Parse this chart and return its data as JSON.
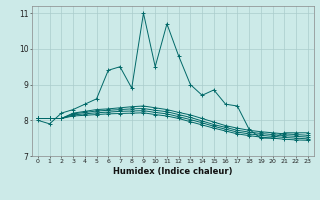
{
  "xlabel": "Humidex (Indice chaleur)",
  "bg_color": "#cceae8",
  "grid_color": "#aacccc",
  "line_color": "#006868",
  "xlim": [
    -0.5,
    23.5
  ],
  "ylim": [
    7,
    11.2
  ],
  "yticks": [
    7,
    8,
    9,
    10,
    11
  ],
  "xticks": [
    0,
    1,
    2,
    3,
    4,
    5,
    6,
    7,
    8,
    9,
    10,
    11,
    12,
    13,
    14,
    15,
    16,
    17,
    18,
    19,
    20,
    21,
    22,
    23
  ],
  "series": [
    [
      8.0,
      7.9,
      8.2,
      8.3,
      8.45,
      8.6,
      9.4,
      9.5,
      8.9,
      11.0,
      9.5,
      10.7,
      9.8,
      9.0,
      8.7,
      8.85,
      8.45,
      8.4,
      7.75,
      7.5,
      7.5,
      7.65,
      7.65,
      7.65
    ],
    [
      8.05,
      8.05,
      8.05,
      8.2,
      8.25,
      8.3,
      8.32,
      8.35,
      8.38,
      8.4,
      8.35,
      8.3,
      8.22,
      8.15,
      8.05,
      7.95,
      7.85,
      7.78,
      7.72,
      7.68,
      7.65,
      7.62,
      7.6,
      7.58
    ],
    [
      8.05,
      8.05,
      8.05,
      8.18,
      8.22,
      8.26,
      8.28,
      8.3,
      8.32,
      8.33,
      8.28,
      8.24,
      8.16,
      8.08,
      7.98,
      7.88,
      7.8,
      7.72,
      7.67,
      7.63,
      7.6,
      7.57,
      7.55,
      7.53
    ],
    [
      8.05,
      8.05,
      8.05,
      8.15,
      8.18,
      8.21,
      8.23,
      8.25,
      8.26,
      8.27,
      8.22,
      8.18,
      8.1,
      8.02,
      7.93,
      7.83,
      7.75,
      7.67,
      7.62,
      7.58,
      7.55,
      7.52,
      7.5,
      7.48
    ],
    [
      8.05,
      8.05,
      8.05,
      8.12,
      8.14,
      8.16,
      8.18,
      8.19,
      8.2,
      8.21,
      8.16,
      8.12,
      8.05,
      7.96,
      7.87,
      7.78,
      7.7,
      7.62,
      7.57,
      7.53,
      7.5,
      7.47,
      7.45,
      7.44
    ]
  ]
}
